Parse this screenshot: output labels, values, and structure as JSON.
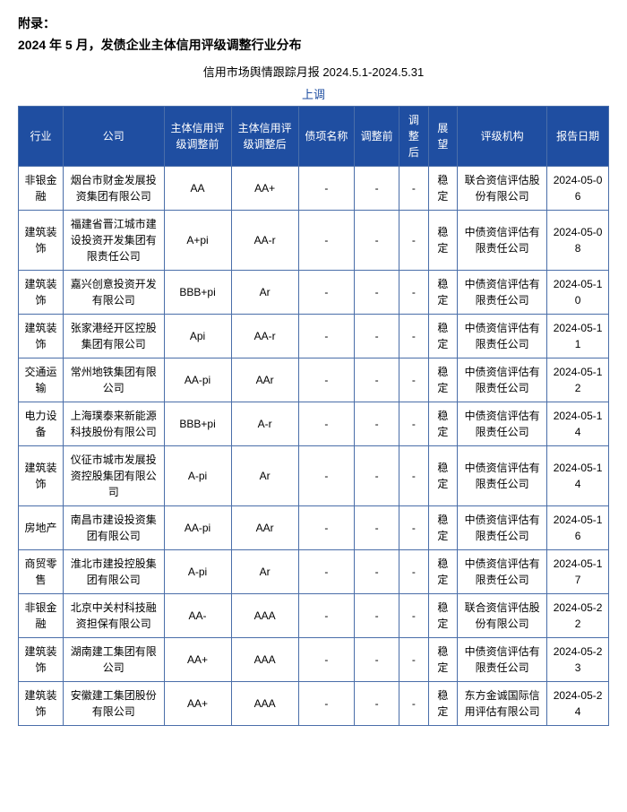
{
  "appendix_label": "附录：",
  "appendix_title": "2024 年 5 月，发债企业主体信用评级调整行业分布",
  "report_title": "信用市场舆情跟踪月报 2024.5.1-2024.5.31",
  "sub_heading": "上调",
  "columns": [
    "行业",
    "公司",
    "主体信用评级调整前",
    "主体信用评级调整后",
    "债项名称",
    "调整前",
    "调整后",
    "展望",
    "评级机构",
    "报告日期"
  ],
  "rows": [
    {
      "industry": "非银金融",
      "company": "烟台市财金发展投资集团有限公司",
      "before": "AA",
      "after": "AA+",
      "bond": "-",
      "badj_b": "-",
      "badj_a": "-",
      "outlook": "稳定",
      "agency": "联合资信评估股份有限公司",
      "date": "2024-05-06"
    },
    {
      "industry": "建筑装饰",
      "company": "福建省晋江城市建设投资开发集团有限责任公司",
      "before": "A+pi",
      "after": "AA-r",
      "bond": "-",
      "badj_b": "-",
      "badj_a": "-",
      "outlook": "稳定",
      "agency": "中债资信评估有限责任公司",
      "date": "2024-05-08"
    },
    {
      "industry": "建筑装饰",
      "company": "嘉兴创意投资开发有限公司",
      "before": "BBB+pi",
      "after": "Ar",
      "bond": "-",
      "badj_b": "-",
      "badj_a": "-",
      "outlook": "稳定",
      "agency": "中债资信评估有限责任公司",
      "date": "2024-05-10"
    },
    {
      "industry": "建筑装饰",
      "company": "张家港经开区控股集团有限公司",
      "before": "Api",
      "after": "AA-r",
      "bond": "-",
      "badj_b": "-",
      "badj_a": "-",
      "outlook": "稳定",
      "agency": "中债资信评估有限责任公司",
      "date": "2024-05-11"
    },
    {
      "industry": "交通运输",
      "company": "常州地铁集团有限公司",
      "before": "AA-pi",
      "after": "AAr",
      "bond": "-",
      "badj_b": "-",
      "badj_a": "-",
      "outlook": "稳定",
      "agency": "中债资信评估有限责任公司",
      "date": "2024-05-12"
    },
    {
      "industry": "电力设备",
      "company": "上海璞泰来新能源科技股份有限公司",
      "before": "BBB+pi",
      "after": "A-r",
      "bond": "-",
      "badj_b": "-",
      "badj_a": "-",
      "outlook": "稳定",
      "agency": "中债资信评估有限责任公司",
      "date": "2024-05-14"
    },
    {
      "industry": "建筑装饰",
      "company": "仪征市城市发展投资控股集团有限公司",
      "before": "A-pi",
      "after": "Ar",
      "bond": "-",
      "badj_b": "-",
      "badj_a": "-",
      "outlook": "稳定",
      "agency": "中债资信评估有限责任公司",
      "date": "2024-05-14"
    },
    {
      "industry": "房地产",
      "company": "南昌市建设投资集团有限公司",
      "before": "AA-pi",
      "after": "AAr",
      "bond": "-",
      "badj_b": "-",
      "badj_a": "-",
      "outlook": "稳定",
      "agency": "中债资信评估有限责任公司",
      "date": "2024-05-16"
    },
    {
      "industry": "商贸零售",
      "company": "淮北市建投控股集团有限公司",
      "before": "A-pi",
      "after": "Ar",
      "bond": "-",
      "badj_b": "-",
      "badj_a": "-",
      "outlook": "稳定",
      "agency": "中债资信评估有限责任公司",
      "date": "2024-05-17"
    },
    {
      "industry": "非银金融",
      "company": "北京中关村科技融资担保有限公司",
      "before": "AA-",
      "after": "AAA",
      "bond": "-",
      "badj_b": "-",
      "badj_a": "-",
      "outlook": "稳定",
      "agency": "联合资信评估股份有限公司",
      "date": "2024-05-22"
    },
    {
      "industry": "建筑装饰",
      "company": "湖南建工集团有限公司",
      "before": "AA+",
      "after": "AAA",
      "bond": "-",
      "badj_b": "-",
      "badj_a": "-",
      "outlook": "稳定",
      "agency": "中债资信评估有限责任公司",
      "date": "2024-05-23"
    },
    {
      "industry": "建筑装饰",
      "company": "安徽建工集团股份有限公司",
      "before": "AA+",
      "after": "AAA",
      "bond": "-",
      "badj_b": "-",
      "badj_a": "-",
      "outlook": "稳定",
      "agency": "东方金诚国际信用评估有限公司",
      "date": "2024-05-24"
    }
  ]
}
